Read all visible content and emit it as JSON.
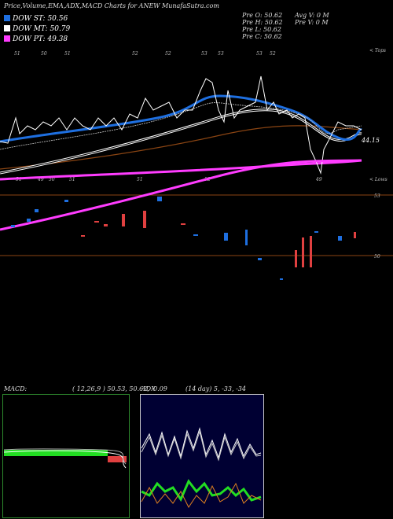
{
  "header": {
    "title": "Price,Volume,EMA,ADX,MACD Charts for ANEW MunafaSutra.com"
  },
  "legend": [
    {
      "label": "DOW ST: 50.56",
      "color": "#1e6fe0"
    },
    {
      "label": "DOW MT: 50.79",
      "color": "#ffffff"
    },
    {
      "label": "DOW PT: 49.38",
      "color": "#ff3cff"
    }
  ],
  "info": [
    "Pre  O: 50.62",
    "Pre  H: 50.62",
    "Pre  L: 50.62",
    "Pre  C: 50.62",
    "Avg  V: 0  M",
    "Pre  V: 0  M"
  ],
  "top_labels": [
    "51",
    "50",
    "51",
    "52",
    "52",
    "53",
    "53",
    "53",
    "52"
  ],
  "bottom_labels": [
    "51",
    "49",
    "50",
    "51",
    "51",
    "52",
    "49"
  ],
  "last_price": "44.15",
  "tops": "< Tops",
  "lows": "< Lows",
  "levels": [
    "53",
    "50"
  ],
  "macd": {
    "name": "MACD:",
    "params": "( 12,26,9 ) 50.53, 50.62, -0.09"
  },
  "adx": {
    "name": "ADX",
    "params": "(14  day) 5, -33, -34"
  }
}
